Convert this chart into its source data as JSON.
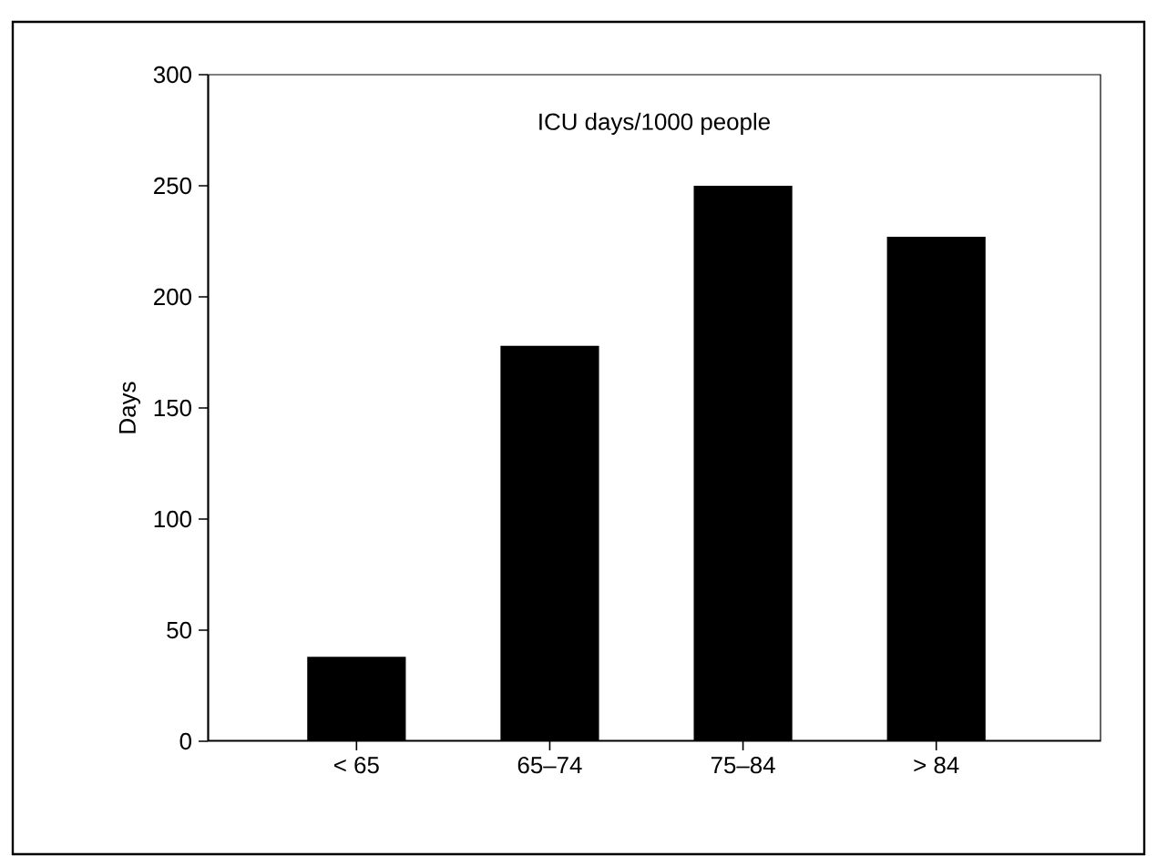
{
  "chart_data": {
    "type": "bar",
    "title": "ICU days/1000 people",
    "ylabel": "Days",
    "categories": [
      "< 65",
      "65–74",
      "75–84",
      "> 84"
    ],
    "values": [
      38,
      178,
      250,
      227
    ],
    "color": "#000000",
    "ylim": [
      0,
      300
    ],
    "yticks": [
      0,
      50,
      100,
      150,
      200,
      250,
      300
    ]
  }
}
